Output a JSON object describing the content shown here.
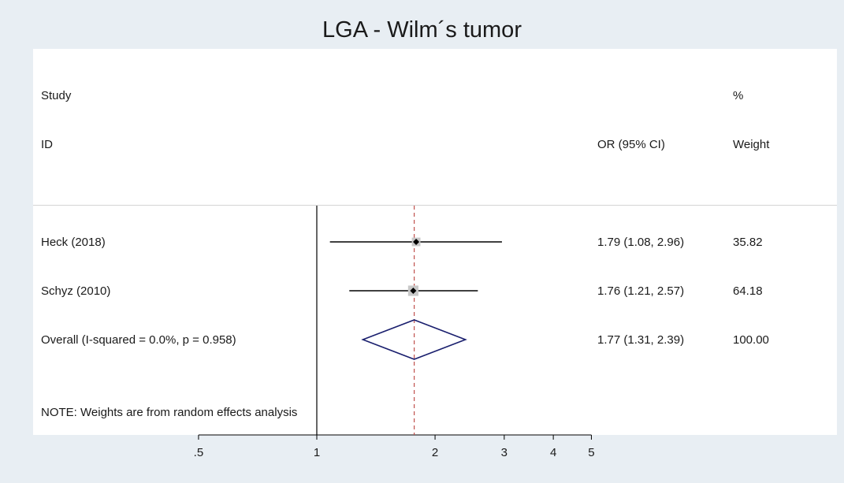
{
  "title": "LGA - Wilm´s tumor",
  "header": {
    "study_line1": "Study",
    "study_line2": "ID",
    "or_label": "OR (95% CI)",
    "weight_line1": "%",
    "weight_line2": "Weight"
  },
  "note": "NOTE: Weights are from random effects analysis",
  "colors": {
    "diamond": "#1a1f6e",
    "ref_line": "#c0504d",
    "ci_line": "#000000",
    "point": "#000000"
  },
  "chart_data": {
    "type": "forest",
    "scale": "log",
    "x_ticks": [
      0.5,
      1,
      2,
      3,
      4,
      5
    ],
    "x_tick_labels": [
      ".5",
      "1",
      "2",
      "3",
      "4",
      "5"
    ],
    "null_value": 1,
    "pooled_estimate": 1.77,
    "studies": [
      {
        "label": "Heck (2018)",
        "or": 1.79,
        "lower": 1.08,
        "upper": 2.96,
        "or_text": "1.79 (1.08, 2.96)",
        "weight": "35.82"
      },
      {
        "label": "Schyz (2010)",
        "or": 1.76,
        "lower": 1.21,
        "upper": 2.57,
        "or_text": "1.76 (1.21, 2.57)",
        "weight": "64.18"
      }
    ],
    "overall": {
      "label": "Overall  (I-squared = 0.0%, p = 0.958)",
      "or": 1.77,
      "lower": 1.31,
      "upper": 2.39,
      "or_text": "1.77 (1.31, 2.39)",
      "weight": "100.00"
    }
  }
}
